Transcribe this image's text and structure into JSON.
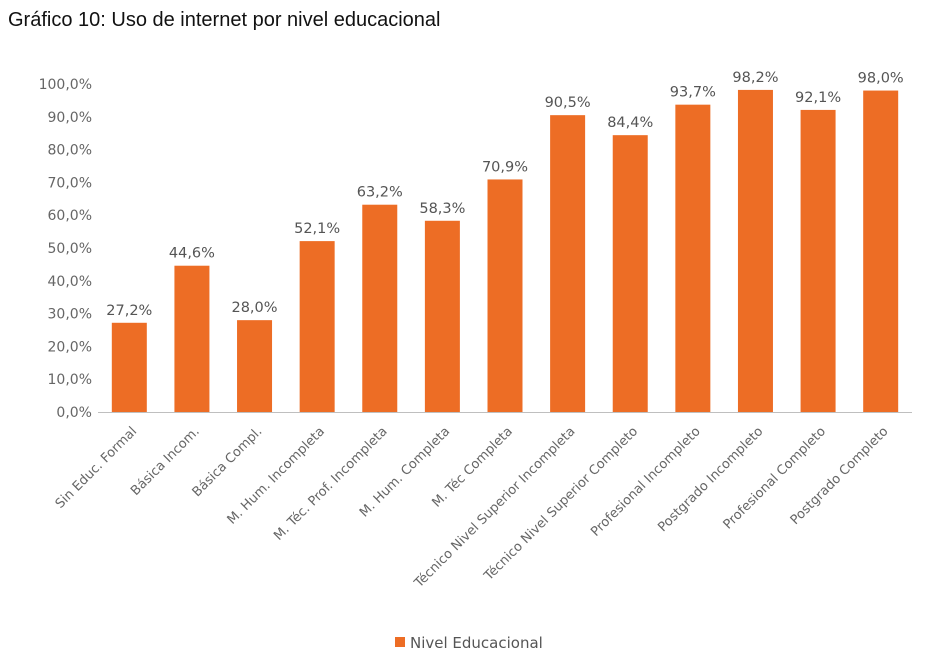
{
  "title": "Gráfico 10: Uso de internet por nivel educacional",
  "chart_data": {
    "type": "bar",
    "title": "Gráfico 10: Uso de internet por nivel educacional",
    "categories": [
      "Sin Educ. Formal",
      "Básica Incom.",
      "Básica Compl.",
      "M. Hum. Incompleta",
      "M. Téc. Prof. Incompleta",
      "M. Hum. Completa",
      "M. Téc Completa",
      "Técnico Nivel Superior Incompleta",
      "Técnico Nivel Superior Completo",
      "Profesional  Incompleto",
      "Postgrado Incompleto",
      "Profesional Completo",
      "Postgrado Completo"
    ],
    "series": [
      {
        "name": "Nivel Educacional",
        "values": [
          27.2,
          44.6,
          28.0,
          52.1,
          63.2,
          58.3,
          70.9,
          90.5,
          84.4,
          93.7,
          98.2,
          92.1,
          98.0
        ],
        "labels": [
          "27,2%",
          "44,6%",
          "28,0%",
          "52,1%",
          "63,2%",
          "58,3%",
          "70,9%",
          "90,5%",
          "84,4%",
          "93,7%",
          "98,2%",
          "92,1%",
          "98,0%"
        ]
      }
    ],
    "yticks": [
      "0,0%",
      "10,0%",
      "20,0%",
      "30,0%",
      "40,0%",
      "50,0%",
      "60,0%",
      "70,0%",
      "80,0%",
      "90,0%",
      "100,0%"
    ],
    "ylim": [
      0,
      100
    ],
    "xlabel": "",
    "ylabel": "",
    "grid": false,
    "legend": "bottom",
    "colors": {
      "bar": "#ED6D25",
      "text": "#666666",
      "axis": "#BFBFBF"
    }
  }
}
